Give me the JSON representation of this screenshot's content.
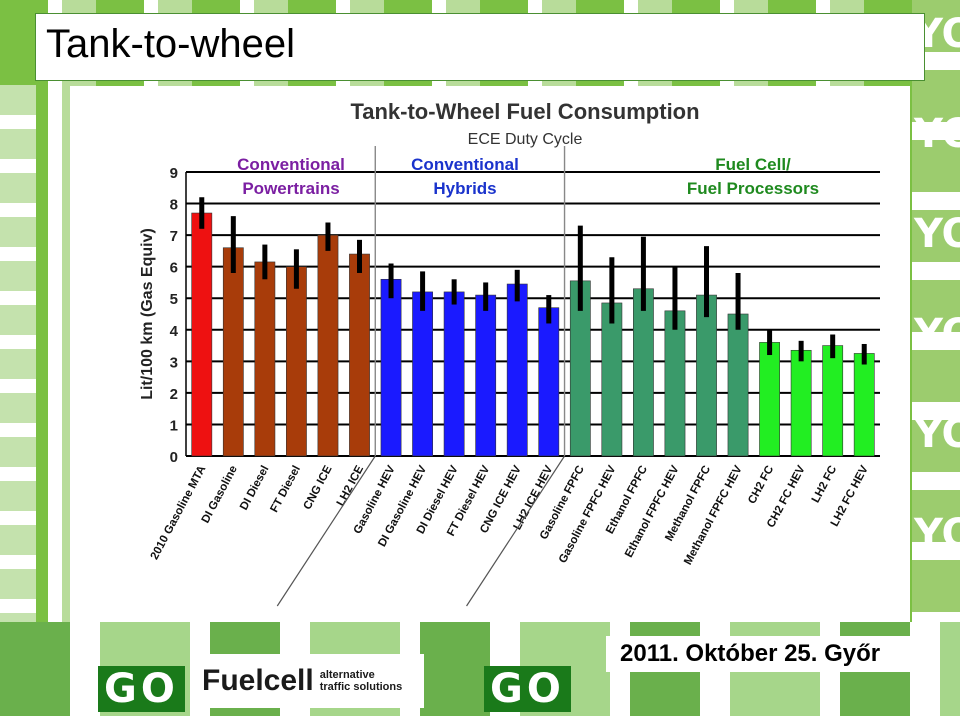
{
  "slide": {
    "title": "Tank-to-wheel",
    "date": "2011. Október 25. Győr",
    "logos": {
      "hygo_left": "GO",
      "hygo_right": "GO",
      "fuelcell_name": "Fuelcell",
      "fuelcell_tagline_1": "alternative",
      "fuelcell_tagline_2": "traffic solutions",
      "background_letters": "YO"
    }
  },
  "chart_data": {
    "type": "bar",
    "title": "Tank-to-Wheel Fuel Consumption",
    "subtitle": "ECE Duty Cycle",
    "xlabel": "",
    "ylabel": "Lit/100 km  (Gas Equiv)",
    "ylim": [
      0,
      9
    ],
    "yticks": [
      0,
      1,
      2,
      3,
      4,
      5,
      6,
      7,
      8,
      9
    ],
    "grid": true,
    "groups": [
      {
        "label_1": "Conventional",
        "label_2": "Powertrains",
        "color": "#7b1fa2"
      },
      {
        "label_1": "Conventional",
        "label_2": "Hybrids",
        "color": "#1a33cc"
      },
      {
        "label_1": "Fuel Cell/",
        "label_2": "Fuel Processors",
        "color": "#1f8a1f"
      }
    ],
    "categories": [
      "2010 Gasoline MTA",
      "DI Gasoline",
      "DI Diesel",
      "FT Diesel",
      "CNG ICE",
      "LH2 ICE",
      "Gasoline HEV",
      "DI Gasoline HEV",
      "DI Diesel HEV",
      "FT Diesel HEV",
      "CNG ICE HEV",
      "LH2 ICE HEV",
      "Gasoline FPFC",
      "Gasoline FPFC HEV",
      "Ethanol FPFC",
      "Ethanol FPFC HEV",
      "Methanol FPFC",
      "Methanol FPFC HEV",
      "CH2 FC",
      "CH2 FC HEV",
      "LH2 FC",
      "LH2 FC HEV"
    ],
    "values": [
      7.7,
      6.6,
      6.15,
      6.0,
      7.0,
      6.4,
      5.6,
      5.2,
      5.2,
      5.1,
      5.45,
      4.7,
      5.55,
      4.85,
      5.3,
      4.6,
      5.1,
      4.5,
      3.6,
      3.35,
      3.5,
      3.25
    ],
    "error_low": [
      7.2,
      5.8,
      5.6,
      5.3,
      6.5,
      5.8,
      5.0,
      4.6,
      4.8,
      4.6,
      4.9,
      4.2,
      4.6,
      4.2,
      4.6,
      4.0,
      4.4,
      4.0,
      3.2,
      3.0,
      3.1,
      2.9
    ],
    "error_high": [
      8.2,
      7.6,
      6.7,
      6.55,
      7.4,
      6.85,
      6.1,
      5.85,
      5.6,
      5.5,
      5.9,
      5.1,
      7.3,
      6.3,
      6.95,
      6.0,
      6.65,
      5.8,
      4.0,
      3.65,
      3.85,
      3.55
    ],
    "bar_colors": [
      "#ee1111",
      "#a83c0a",
      "#a83c0a",
      "#a83c0a",
      "#a83c0a",
      "#a83c0a",
      "#1a1aff",
      "#1a1aff",
      "#1a1aff",
      "#1a1aff",
      "#1a1aff",
      "#1a1aff",
      "#3a9a6a",
      "#3a9a6a",
      "#3a9a6a",
      "#3a9a6a",
      "#3a9a6a",
      "#3a9a6a",
      "#22ee22",
      "#22ee22",
      "#22ee22",
      "#22ee22"
    ],
    "group_sizes": [
      6,
      6,
      10
    ]
  }
}
